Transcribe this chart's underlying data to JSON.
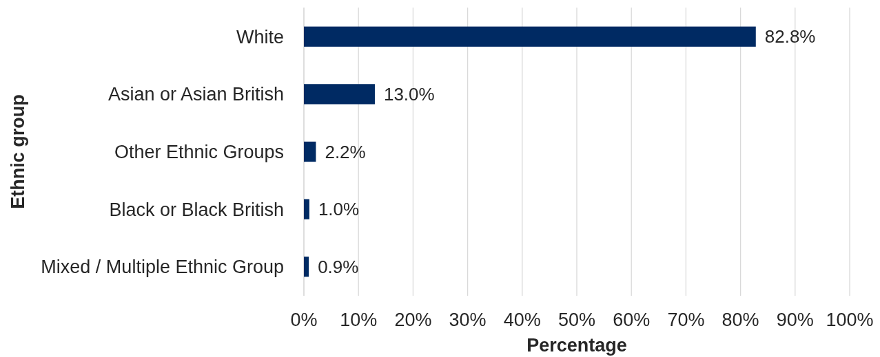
{
  "chart_data": {
    "type": "bar",
    "orientation": "horizontal",
    "categories": [
      "White",
      "Asian or Asian British",
      "Other Ethnic Groups",
      "Black or Black British",
      "Mixed / Multiple Ethnic Group"
    ],
    "values": [
      82.8,
      13.0,
      2.2,
      1.0,
      0.9
    ],
    "color": "#002a63",
    "value_labels": [
      "82.8%",
      "13.0%",
      "2.2%",
      "1.0%",
      "0.9%"
    ],
    "xlabel": "Percentage",
    "ylabel": "Ethnic group",
    "xlim": [
      0,
      100
    ],
    "xticks": [
      {
        "value": 0,
        "label": "0%"
      },
      {
        "value": 10,
        "label": "10%"
      },
      {
        "value": 20,
        "label": "20%"
      },
      {
        "value": 30,
        "label": "30%"
      },
      {
        "value": 40,
        "label": "40%"
      },
      {
        "value": 50,
        "label": "50%"
      },
      {
        "value": 60,
        "label": "60%"
      },
      {
        "value": 70,
        "label": "70%"
      },
      {
        "value": 80,
        "label": "80%"
      },
      {
        "value": 90,
        "label": "90%"
      },
      {
        "value": 100,
        "label": "100%"
      }
    ],
    "grid": "x"
  }
}
